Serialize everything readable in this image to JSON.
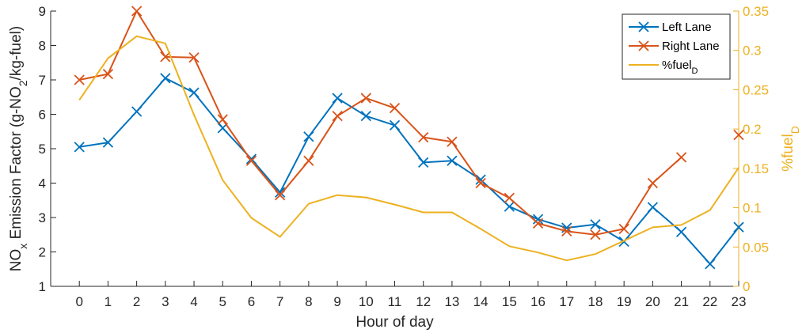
{
  "chart_data": {
    "type": "line",
    "x": [
      0,
      1,
      2,
      3,
      4,
      5,
      6,
      7,
      8,
      9,
      10,
      11,
      12,
      13,
      14,
      15,
      16,
      17,
      18,
      19,
      20,
      21,
      22,
      23
    ],
    "xlabel": "Hour of day",
    "ylabel_left": {
      "main": "NO",
      "sub": "x",
      "rest": " Emission Factor (g-NO",
      "sub2": "2",
      "tail": "/kg-fuel)"
    },
    "ylabel_right": {
      "main": "%fuel",
      "sub": "D"
    },
    "xlim": [
      -1,
      23
    ],
    "ylim_left": [
      1,
      9
    ],
    "ylim_right": [
      0,
      0.35
    ],
    "xticks": [
      "0",
      "1",
      "2",
      "3",
      "4",
      "5",
      "6",
      "7",
      "8",
      "9",
      "10",
      "11",
      "12",
      "13",
      "14",
      "15",
      "16",
      "17",
      "18",
      "19",
      "20",
      "21",
      "22",
      "23"
    ],
    "yticks_left": [
      "1",
      "2",
      "3",
      "4",
      "5",
      "6",
      "7",
      "8",
      "9"
    ],
    "yticks_right": [
      "0",
      "0.05",
      "0.1",
      "0.15",
      "0.2",
      "0.25",
      "0.3",
      "0.35"
    ],
    "series": [
      {
        "name": "Left Lane",
        "axis": "left",
        "color": "#0072BD",
        "marker": "x",
        "x": [
          0,
          1,
          2,
          3,
          4,
          5,
          6,
          7,
          8,
          9,
          10,
          11,
          12,
          13,
          14,
          15,
          16,
          17,
          18,
          19,
          20,
          21,
          22,
          23
        ],
        "values": [
          5.05,
          5.18,
          6.08,
          7.05,
          6.63,
          5.6,
          4.7,
          3.73,
          5.35,
          6.47,
          5.95,
          5.68,
          4.6,
          4.65,
          4.1,
          3.32,
          2.95,
          2.7,
          2.8,
          2.3,
          3.3,
          2.58,
          1.65,
          2.72
        ]
      },
      {
        "name": "Right Lane",
        "axis": "left",
        "color": "#D95319",
        "marker": "x",
        "x": [
          0,
          1,
          2,
          3,
          4,
          5,
          6,
          7,
          8,
          9,
          10,
          11,
          12,
          13,
          14,
          15,
          16,
          17,
          18,
          19,
          20,
          21,
          null,
          23
        ],
        "values": [
          7.0,
          7.17,
          9.0,
          7.67,
          7.65,
          5.85,
          4.65,
          3.65,
          4.65,
          5.95,
          6.47,
          6.18,
          5.33,
          5.2,
          4.0,
          3.57,
          2.83,
          2.6,
          2.5,
          2.67,
          4.0,
          4.75,
          null,
          5.4
        ]
      },
      {
        "name": "%fuel",
        "name_sub": "D",
        "axis": "right",
        "color": "#EDB120",
        "marker": "none",
        "x": [
          0,
          1,
          2,
          3,
          4,
          5,
          6,
          7,
          8,
          9,
          10,
          11,
          12,
          13,
          14,
          15,
          16,
          17,
          18,
          19,
          20,
          21,
          22,
          23
        ],
        "values": [
          0.237,
          0.29,
          0.318,
          0.309,
          0.218,
          0.135,
          0.087,
          0.063,
          0.105,
          0.116,
          0.113,
          0.104,
          0.094,
          0.094,
          0.073,
          0.051,
          0.043,
          0.033,
          0.041,
          0.058,
          0.075,
          0.078,
          0.097,
          0.151
        ]
      }
    ],
    "legend": "top-right",
    "grid": false
  }
}
